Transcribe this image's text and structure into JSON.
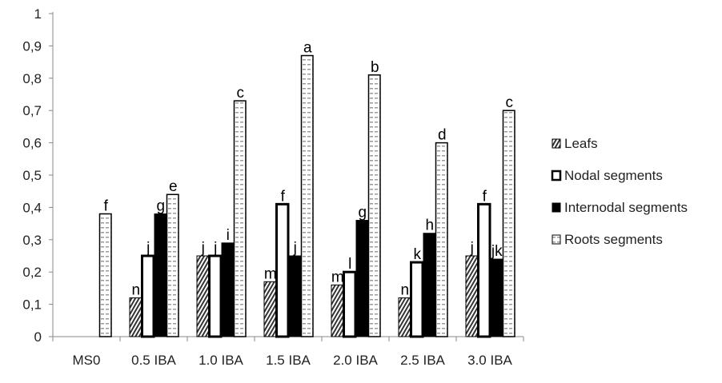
{
  "chart_data": {
    "type": "bar",
    "title": "",
    "xlabel": "",
    "ylabel": "",
    "ylim": [
      0,
      1
    ],
    "yticks": [
      "0",
      "0,1",
      "0,2",
      "0,3",
      "0,4",
      "0,5",
      "0,6",
      "0,7",
      "0,8",
      "0,9",
      "1"
    ],
    "grid": false,
    "legend_position": "right",
    "categories": [
      "MS0",
      "0.5 IBA",
      "1.0 IBA",
      "1.5 IBA",
      "2.0 IBA",
      "2.5 IBA",
      "3.0 IBA"
    ],
    "series": [
      {
        "name": "Leafs",
        "pattern": "diagonal-hatch",
        "values": [
          null,
          0.12,
          0.25,
          0.17,
          0.16,
          0.12,
          0.25
        ],
        "labels": [
          "",
          "n",
          "j",
          "m",
          "m",
          "n",
          "j"
        ]
      },
      {
        "name": "Nodal segments",
        "pattern": "white-thick-border",
        "values": [
          null,
          0.25,
          0.25,
          0.41,
          0.2,
          0.23,
          0.41
        ],
        "labels": [
          "",
          "j",
          "j",
          "f",
          "l",
          "k",
          "f"
        ]
      },
      {
        "name": "Internodal segments",
        "pattern": "solid-black",
        "values": [
          null,
          0.38,
          0.29,
          0.25,
          0.36,
          0.32,
          0.24
        ],
        "labels": [
          "",
          "g",
          "i",
          "j",
          "g",
          "h",
          "jk"
        ]
      },
      {
        "name": "Roots segments",
        "pattern": "horizontal-dashes",
        "values": [
          0.38,
          0.44,
          0.73,
          0.87,
          0.81,
          0.6,
          0.7
        ],
        "labels": [
          "f",
          "e",
          "c",
          "a",
          "b",
          "d",
          "c"
        ]
      }
    ]
  }
}
